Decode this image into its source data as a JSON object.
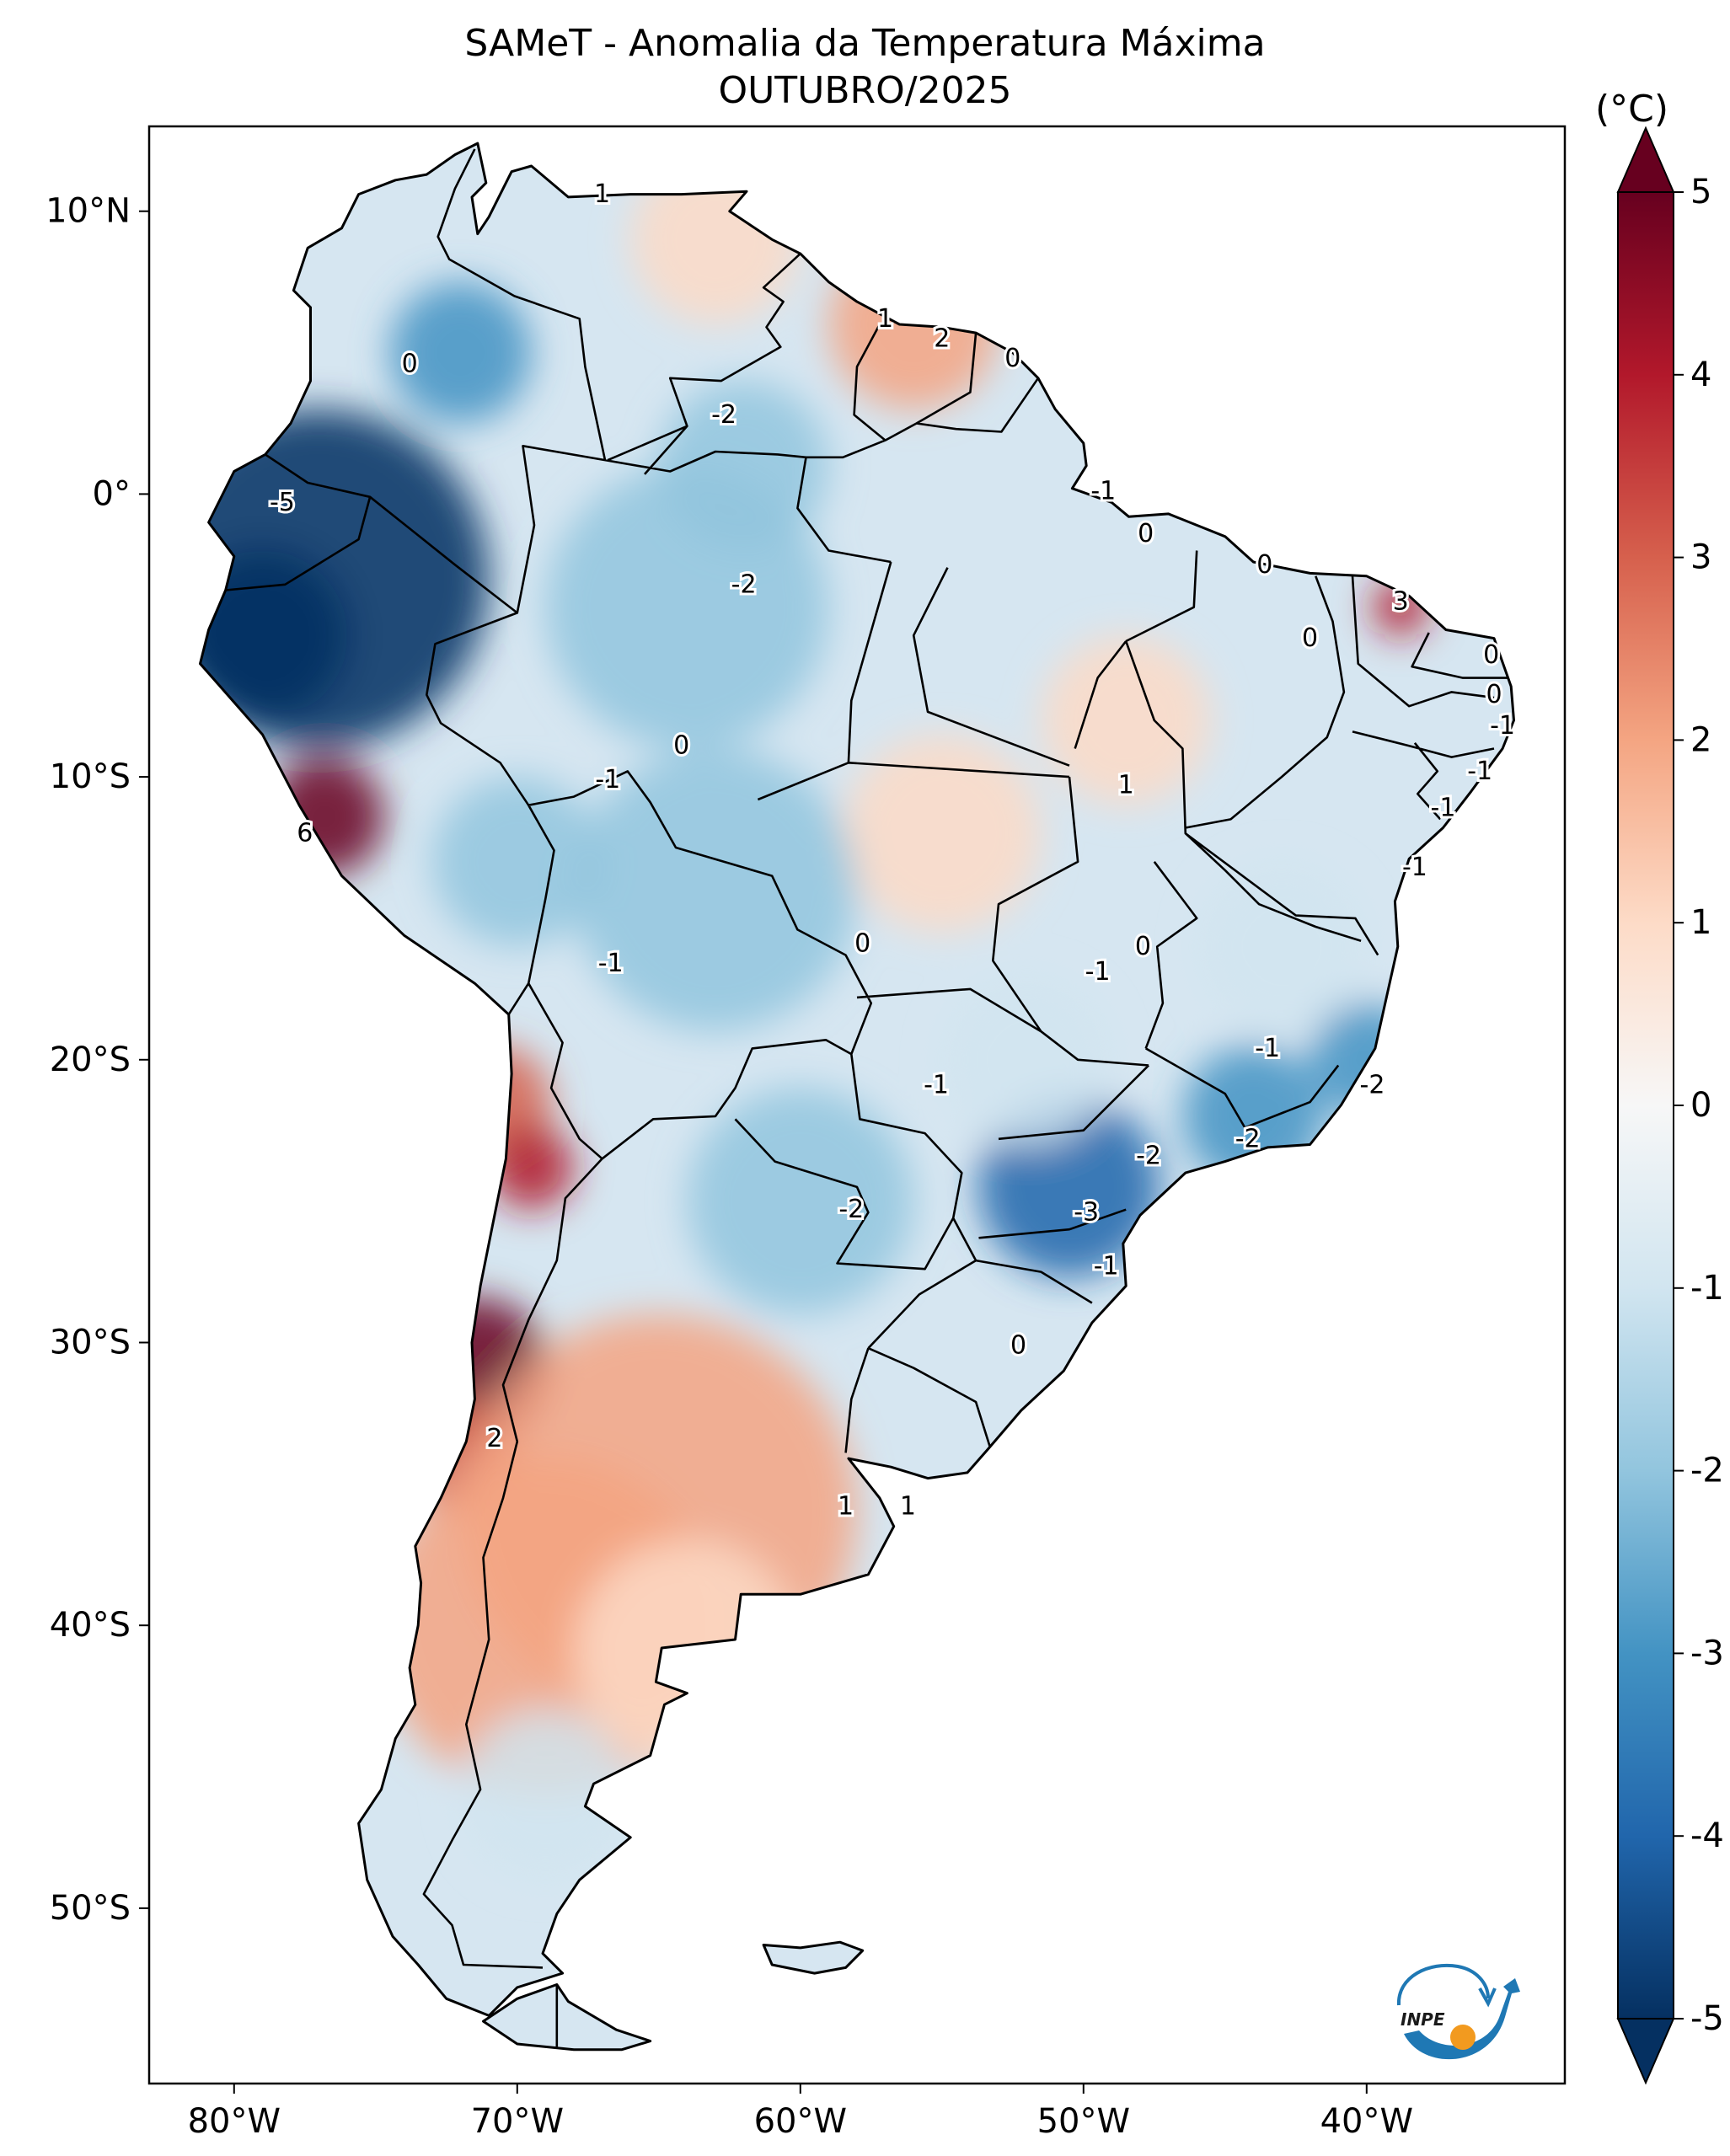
{
  "title": "SAMeT - Anomalia da Temperatura Máxima",
  "subtitle": "OUTUBRO/2025",
  "colorbar": {
    "unit": "(°C)",
    "ticks": [
      "5",
      "4",
      "3",
      "2",
      "1",
      "0",
      "-1",
      "-2",
      "-3",
      "-4",
      "-5"
    ],
    "range": [
      -5,
      5
    ],
    "colors": {
      "max": "#67001f",
      "hot": "#d6604d",
      "warm": "#f4a582",
      "mild": "#fddbc7",
      "zero": "#f7f7f7",
      "cool": "#d1e5f0",
      "cold": "#92c5de",
      "colder": "#4393c3",
      "min": "#053061"
    }
  },
  "axes": {
    "lon_labels": [
      "80°W",
      "70°W",
      "60°W",
      "50°W",
      "40°W"
    ],
    "lat_labels": [
      "10°N",
      "0°",
      "10°S",
      "20°S",
      "30°S",
      "40°S",
      "50°S"
    ]
  },
  "contour_labels": [
    {
      "id": "c1",
      "text": "1",
      "lon": -67,
      "lat": 10.6,
      "anomaly": 1
    },
    {
      "id": "c2",
      "text": "1",
      "lon": -57,
      "lat": 6.2,
      "anomaly": 1
    },
    {
      "id": "c3",
      "text": "2",
      "lon": -55,
      "lat": 5.5,
      "anomaly": 2
    },
    {
      "id": "c4",
      "text": "0",
      "lon": -52.5,
      "lat": 4.8,
      "anomaly": 0
    },
    {
      "id": "c5",
      "text": "0",
      "lon": -73.8,
      "lat": 4.6,
      "anomaly": 0
    },
    {
      "id": "c6",
      "text": "-2",
      "lon": -62.7,
      "lat": 2.8,
      "anomaly": -2
    },
    {
      "id": "c7",
      "text": "-5",
      "lon": -78.3,
      "lat": -0.3,
      "anomaly": -5
    },
    {
      "id": "c8",
      "text": "-1",
      "lon": -49.3,
      "lat": 0.1,
      "anomaly": -1
    },
    {
      "id": "c9",
      "text": "0",
      "lon": -47.8,
      "lat": -1.4,
      "anomaly": 0
    },
    {
      "id": "c10",
      "text": "-2",
      "lon": -62,
      "lat": -3.2,
      "anomaly": -2
    },
    {
      "id": "c11",
      "text": "0",
      "lon": -43.6,
      "lat": -2.5,
      "anomaly": 0
    },
    {
      "id": "c12",
      "text": "3",
      "lon": -38.8,
      "lat": -3.8,
      "anomaly": 3
    },
    {
      "id": "c13",
      "text": "0",
      "lon": -42,
      "lat": -5.1,
      "anomaly": 0
    },
    {
      "id": "c14",
      "text": "0",
      "lon": -35.6,
      "lat": -5.7,
      "anomaly": 0
    },
    {
      "id": "c15",
      "text": "0",
      "lon": -35.5,
      "lat": -7.1,
      "anomaly": 0
    },
    {
      "id": "c16",
      "text": "-1",
      "lon": -35.2,
      "lat": -8.2,
      "anomaly": -1
    },
    {
      "id": "c17",
      "text": "0",
      "lon": -64.2,
      "lat": -8.9,
      "anomaly": 0
    },
    {
      "id": "c18",
      "text": "-1",
      "lon": -66.8,
      "lat": -10.1,
      "anomaly": -1
    },
    {
      "id": "c19",
      "text": "-1",
      "lon": -36,
      "lat": -9.8,
      "anomaly": -1
    },
    {
      "id": "c20",
      "text": "1",
      "lon": -48.5,
      "lat": -10.3,
      "anomaly": 1
    },
    {
      "id": "c21",
      "text": "-1",
      "lon": -37.3,
      "lat": -11.1,
      "anomaly": -1
    },
    {
      "id": "c22",
      "text": "6",
      "lon": -77.5,
      "lat": -12,
      "anomaly": 6
    },
    {
      "id": "c23",
      "text": "-1",
      "lon": -38.3,
      "lat": -13.2,
      "anomaly": -1
    },
    {
      "id": "c24",
      "text": "0",
      "lon": -57.8,
      "lat": -15.9,
      "anomaly": 0
    },
    {
      "id": "c25",
      "text": "0",
      "lon": -47.9,
      "lat": -16,
      "anomaly": 0
    },
    {
      "id": "c26",
      "text": "-1",
      "lon": -49.5,
      "lat": -16.9,
      "anomaly": -1
    },
    {
      "id": "c27",
      "text": "-1",
      "lon": -66.7,
      "lat": -16.6,
      "anomaly": -1
    },
    {
      "id": "c28",
      "text": "-1",
      "lon": -43.5,
      "lat": -19.6,
      "anomaly": -1
    },
    {
      "id": "c29",
      "text": "-2",
      "lon": -39.8,
      "lat": -20.9,
      "anomaly": -2
    },
    {
      "id": "c30",
      "text": "-1",
      "lon": -55.2,
      "lat": -20.9,
      "anomaly": -1
    },
    {
      "id": "c31",
      "text": "-2",
      "lon": -44.2,
      "lat": -22.8,
      "anomaly": -2
    },
    {
      "id": "c32",
      "text": "-2",
      "lon": -47.7,
      "lat": -23.4,
      "anomaly": -2
    },
    {
      "id": "c33",
      "text": "-3",
      "lon": -49.9,
      "lat": -25.4,
      "anomaly": -3
    },
    {
      "id": "c34",
      "text": "-2",
      "lon": -58.2,
      "lat": -25.3,
      "anomaly": -2
    },
    {
      "id": "c35",
      "text": "-1",
      "lon": -49.2,
      "lat": -27.3,
      "anomaly": -1
    },
    {
      "id": "c36",
      "text": "0",
      "lon": -52.3,
      "lat": -30.1,
      "anomaly": 0
    },
    {
      "id": "c37",
      "text": "2",
      "lon": -70.8,
      "lat": -33.4,
      "anomaly": 2
    },
    {
      "id": "c38",
      "text": "1",
      "lon": -58.4,
      "lat": -35.8,
      "anomaly": 1
    },
    {
      "id": "c39",
      "text": "1",
      "lon": -56.2,
      "lat": -35.8,
      "anomaly": 1
    }
  ],
  "anomaly_blobs": [
    {
      "lon": -77,
      "lat": -3,
      "r": 6,
      "anomaly": -5
    },
    {
      "lon": -79,
      "lat": -5,
      "r": 3,
      "anomaly": -5
    },
    {
      "lon": -71.5,
      "lat": -31,
      "r": 2.6,
      "anomaly": 5
    },
    {
      "lon": -72,
      "lat": -34,
      "r": 2,
      "anomaly": 3
    },
    {
      "lon": -76.8,
      "lat": -11.4,
      "r": 2.1,
      "anomaly": 5
    },
    {
      "lon": -70.8,
      "lat": -21.5,
      "r": 2,
      "anomaly": 3
    },
    {
      "lon": -69.5,
      "lat": -23.8,
      "r": 1.5,
      "anomaly": 4
    },
    {
      "lon": -38.8,
      "lat": -4,
      "r": 1,
      "anomaly": 4
    },
    {
      "lon": -65,
      "lat": -36,
      "r": 7,
      "anomaly": 2
    },
    {
      "lon": -69,
      "lat": -40,
      "r": 6,
      "anomaly": 2
    },
    {
      "lon": -64,
      "lat": -41,
      "r": 4,
      "anomaly": 1
    },
    {
      "lon": -69,
      "lat": -46,
      "r": 3,
      "anomaly": -1
    },
    {
      "lon": -56,
      "lat": 6,
      "r": 3,
      "anomaly": 2
    },
    {
      "lon": -63,
      "lat": 9,
      "r": 3,
      "anomaly": 1
    },
    {
      "lon": -48.5,
      "lat": -8,
      "r": 3,
      "anomaly": 1
    },
    {
      "lon": -55,
      "lat": -12,
      "r": 3.5,
      "anomaly": 1
    },
    {
      "lon": -50.5,
      "lat": -24.5,
      "r": 3.2,
      "anomaly": -4
    },
    {
      "lon": -44,
      "lat": -22,
      "r": 2.5,
      "anomaly": -3
    },
    {
      "lon": -40,
      "lat": -20,
      "r": 2,
      "anomaly": -3
    },
    {
      "lon": -60,
      "lat": -25,
      "r": 4,
      "anomaly": -2
    },
    {
      "lon": -63,
      "lat": -14,
      "r": 5,
      "anomaly": -2
    },
    {
      "lon": -62,
      "lat": 1,
      "r": 3,
      "anomaly": -2
    },
    {
      "lon": -64,
      "lat": -4,
      "r": 5,
      "anomaly": -2
    },
    {
      "lon": -72,
      "lat": 5,
      "r": 2.5,
      "anomaly": -3
    },
    {
      "lon": -70,
      "lat": -13,
      "r": 3,
      "anomaly": -2
    },
    {
      "lon": -43,
      "lat": -16,
      "r": 3,
      "anomaly": -1
    },
    {
      "lon": -52,
      "lat": -20,
      "r": 3,
      "anomaly": -1
    }
  ],
  "logo": {
    "text": "INPE"
  }
}
